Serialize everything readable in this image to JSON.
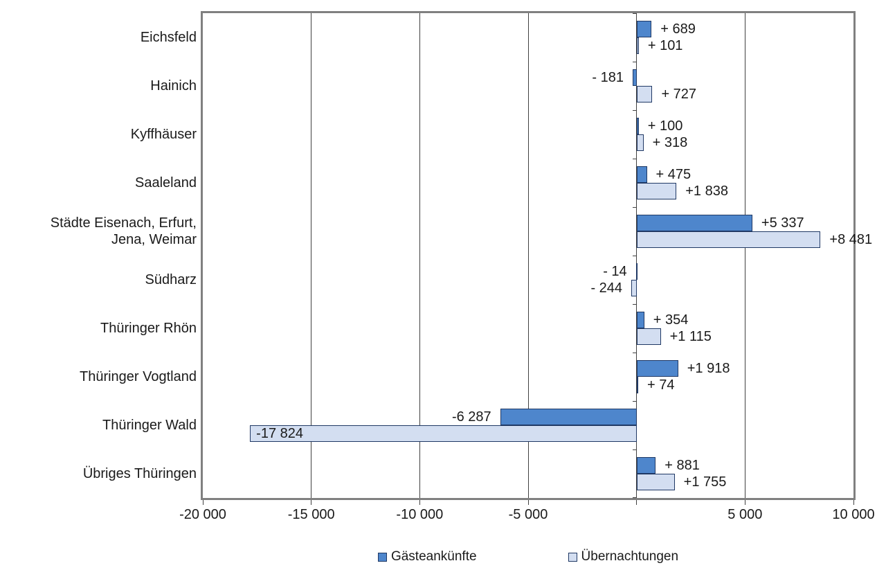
{
  "colors": {
    "arrivals_fill": "#4E86CC",
    "nights_fill": "#D3DEF1",
    "bar_border": "#1F3864",
    "grid": "#404040",
    "plot_border": "#808080",
    "text": "#1a1a1a"
  },
  "chart_data": {
    "type": "bar",
    "orientation": "horizontal",
    "title": "",
    "xlabel": "",
    "ylabel": "",
    "xlim": [
      -20000,
      10000
    ],
    "grid": true,
    "legend_position": "bottom",
    "categories": [
      "Eichsfeld",
      "Hainich",
      "Kyffhäuser",
      "Saaleland",
      "Städte Eisenach, Erfurt,\nJena, Weimar",
      "Südharz",
      "Thüringer Rhön",
      "Thüringer Vogtland",
      "Thüringer Wald",
      "Übriges Thüringen"
    ],
    "series": [
      {
        "name": "Gästeankünfte",
        "color": "#4E86CC",
        "values": [
          689,
          -181,
          100,
          475,
          5337,
          -14,
          354,
          1918,
          -6287,
          881
        ]
      },
      {
        "name": "Übernachtungen",
        "color": "#D3DEF1",
        "values": [
          101,
          727,
          318,
          1838,
          8481,
          -244,
          1115,
          74,
          -17824,
          1755
        ]
      }
    ],
    "x_ticks": [
      {
        "value": -20000,
        "label": "-20 000"
      },
      {
        "value": -15000,
        "label": "-15 000"
      },
      {
        "value": -10000,
        "label": "-10 000"
      },
      {
        "value": -5000,
        "label": "-5 000"
      },
      {
        "value": 0,
        "label": ""
      },
      {
        "value": 5000,
        "label": "5 000"
      },
      {
        "value": 10000,
        "label": "10 000"
      }
    ],
    "rows": [
      {
        "category": "Eichsfeld",
        "bars": [
          {
            "series": "Gästeankünfte",
            "value": 689,
            "label": "+ 689",
            "placement": "outside"
          },
          {
            "series": "Übernachtungen",
            "value": 101,
            "label": "+ 101",
            "placement": "outside"
          }
        ]
      },
      {
        "category": "Hainich",
        "bars": [
          {
            "series": "Gästeankünfte",
            "value": -181,
            "label": "- 181",
            "placement": "outside"
          },
          {
            "series": "Übernachtungen",
            "value": 727,
            "label": "+ 727",
            "placement": "outside"
          }
        ]
      },
      {
        "category": "Kyffhäuser",
        "bars": [
          {
            "series": "Gästeankünfte",
            "value": 100,
            "label": "+ 100",
            "placement": "outside"
          },
          {
            "series": "Übernachtungen",
            "value": 318,
            "label": "+ 318",
            "placement": "outside"
          }
        ]
      },
      {
        "category": "Saaleland",
        "bars": [
          {
            "series": "Gästeankünfte",
            "value": 475,
            "label": "+ 475",
            "placement": "outside"
          },
          {
            "series": "Übernachtungen",
            "value": 1838,
            "label": "+1 838",
            "placement": "outside"
          }
        ]
      },
      {
        "category": "Städte Eisenach, Erfurt,\nJena, Weimar",
        "bars": [
          {
            "series": "Gästeankünfte",
            "value": 5337,
            "label": "+5 337",
            "placement": "outside"
          },
          {
            "series": "Übernachtungen",
            "value": 8481,
            "label": "+8 481",
            "placement": "outside"
          }
        ]
      },
      {
        "category": "Südharz",
        "bars": [
          {
            "series": "Gästeankünfte",
            "value": -14,
            "label": "- 14",
            "placement": "outside"
          },
          {
            "series": "Übernachtungen",
            "value": -244,
            "label": "- 244",
            "placement": "outside"
          }
        ]
      },
      {
        "category": "Thüringer Rhön",
        "bars": [
          {
            "series": "Gästeankünfte",
            "value": 354,
            "label": "+ 354",
            "placement": "outside"
          },
          {
            "series": "Übernachtungen",
            "value": 1115,
            "label": "+1 115",
            "placement": "outside"
          }
        ]
      },
      {
        "category": "Thüringer Vogtland",
        "bars": [
          {
            "series": "Gästeankünfte",
            "value": 1918,
            "label": "+1 918",
            "placement": "outside"
          },
          {
            "series": "Übernachtungen",
            "value": 74,
            "label": "+ 74",
            "placement": "outside"
          }
        ]
      },
      {
        "category": "Thüringer Wald",
        "bars": [
          {
            "series": "Gästeankünfte",
            "value": -6287,
            "label": "-6 287",
            "placement": "outside"
          },
          {
            "series": "Übernachtungen",
            "value": -17824,
            "label": "-17 824",
            "placement": "inside"
          }
        ]
      },
      {
        "category": "Übriges Thüringen",
        "bars": [
          {
            "series": "Gästeankünfte",
            "value": 881,
            "label": "+ 881",
            "placement": "outside"
          },
          {
            "series": "Übernachtungen",
            "value": 1755,
            "label": "+1 755",
            "placement": "outside"
          }
        ]
      }
    ]
  },
  "legend": {
    "items": [
      {
        "label": "Gästeankünfte",
        "color": "#4E86CC"
      },
      {
        "label": "Übernachtungen",
        "color": "#D3DEF1"
      }
    ]
  }
}
